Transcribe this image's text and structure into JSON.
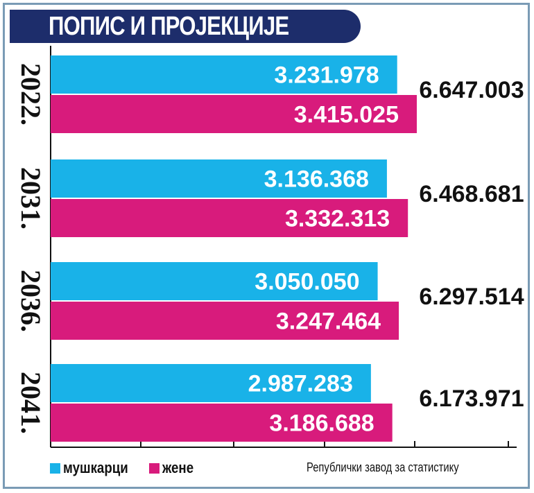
{
  "title": "ПОПИС И ПРОЈЕКЦИЈЕ",
  "source": "Републички завод за статистику",
  "colors": {
    "men": "#19b2e8",
    "women": "#d81b7c",
    "title_bg": "#1d2d6b",
    "frame": "#7a9bb5"
  },
  "legend": [
    {
      "label": "мушкарци",
      "color": "#19b2e8"
    },
    {
      "label": "жене",
      "color": "#d81b7c"
    }
  ],
  "chart_data": {
    "type": "bar",
    "orientation": "horizontal",
    "categories": [
      "2022.",
      "2031.",
      "2036.",
      "2041."
    ],
    "series": [
      {
        "name": "мушкарци",
        "values": [
          3231978,
          3136368,
          3050050,
          2987283
        ],
        "labels": [
          "3.231.978",
          "3.136.368",
          "3.050.050",
          "2.987.283"
        ]
      },
      {
        "name": "жене",
        "values": [
          3415025,
          3332313,
          3247464,
          3186688
        ],
        "labels": [
          "3.415.025",
          "3.332.313",
          "3.247.464",
          "3.186.688"
        ]
      }
    ],
    "totals": [
      6647003,
      6468681,
      6297514,
      6173971
    ],
    "total_labels": [
      "6.647.003",
      "6.468.681",
      "6.297.514",
      "6.173.971"
    ],
    "legend_position": "bottom-left",
    "grid": false
  }
}
